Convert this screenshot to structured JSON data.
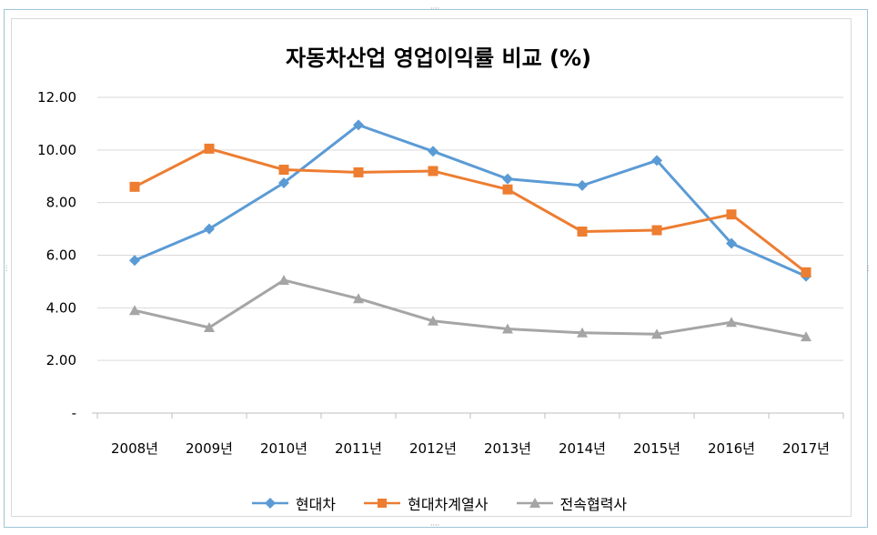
{
  "chart_data": {
    "type": "line",
    "title": "자동차산업 영업이익률 비교 (%)",
    "categories": [
      "2008년",
      "2009년",
      "2010년",
      "2011년",
      "2012년",
      "2013년",
      "2014년",
      "2015년",
      "2016년",
      "2017년"
    ],
    "ylim": [
      0,
      12
    ],
    "yticks": [
      {
        "value": 0,
        "label": "-"
      },
      {
        "value": 2,
        "label": "2.00"
      },
      {
        "value": 4,
        "label": "4.00"
      },
      {
        "value": 6,
        "label": "6.00"
      },
      {
        "value": 8,
        "label": "8.00"
      },
      {
        "value": 10,
        "label": "10.00"
      },
      {
        "value": 12,
        "label": "12.00"
      }
    ],
    "grid": true,
    "legend_position": "bottom",
    "series": [
      {
        "name": "현대차",
        "color": "#5b9bd5",
        "marker": "diamond",
        "values": [
          5.8,
          7.0,
          8.75,
          10.95,
          9.95,
          8.9,
          8.65,
          9.6,
          6.45,
          5.2
        ]
      },
      {
        "name": "현대차계열사",
        "color": "#ed7d31",
        "marker": "square",
        "values": [
          8.6,
          10.05,
          9.25,
          9.15,
          9.2,
          8.5,
          6.9,
          6.95,
          7.55,
          5.35
        ]
      },
      {
        "name": "전속협력사",
        "color": "#a5a5a5",
        "marker": "triangle",
        "values": [
          3.9,
          3.25,
          5.05,
          4.35,
          3.5,
          3.2,
          3.05,
          3.0,
          3.45,
          2.9
        ]
      }
    ]
  }
}
